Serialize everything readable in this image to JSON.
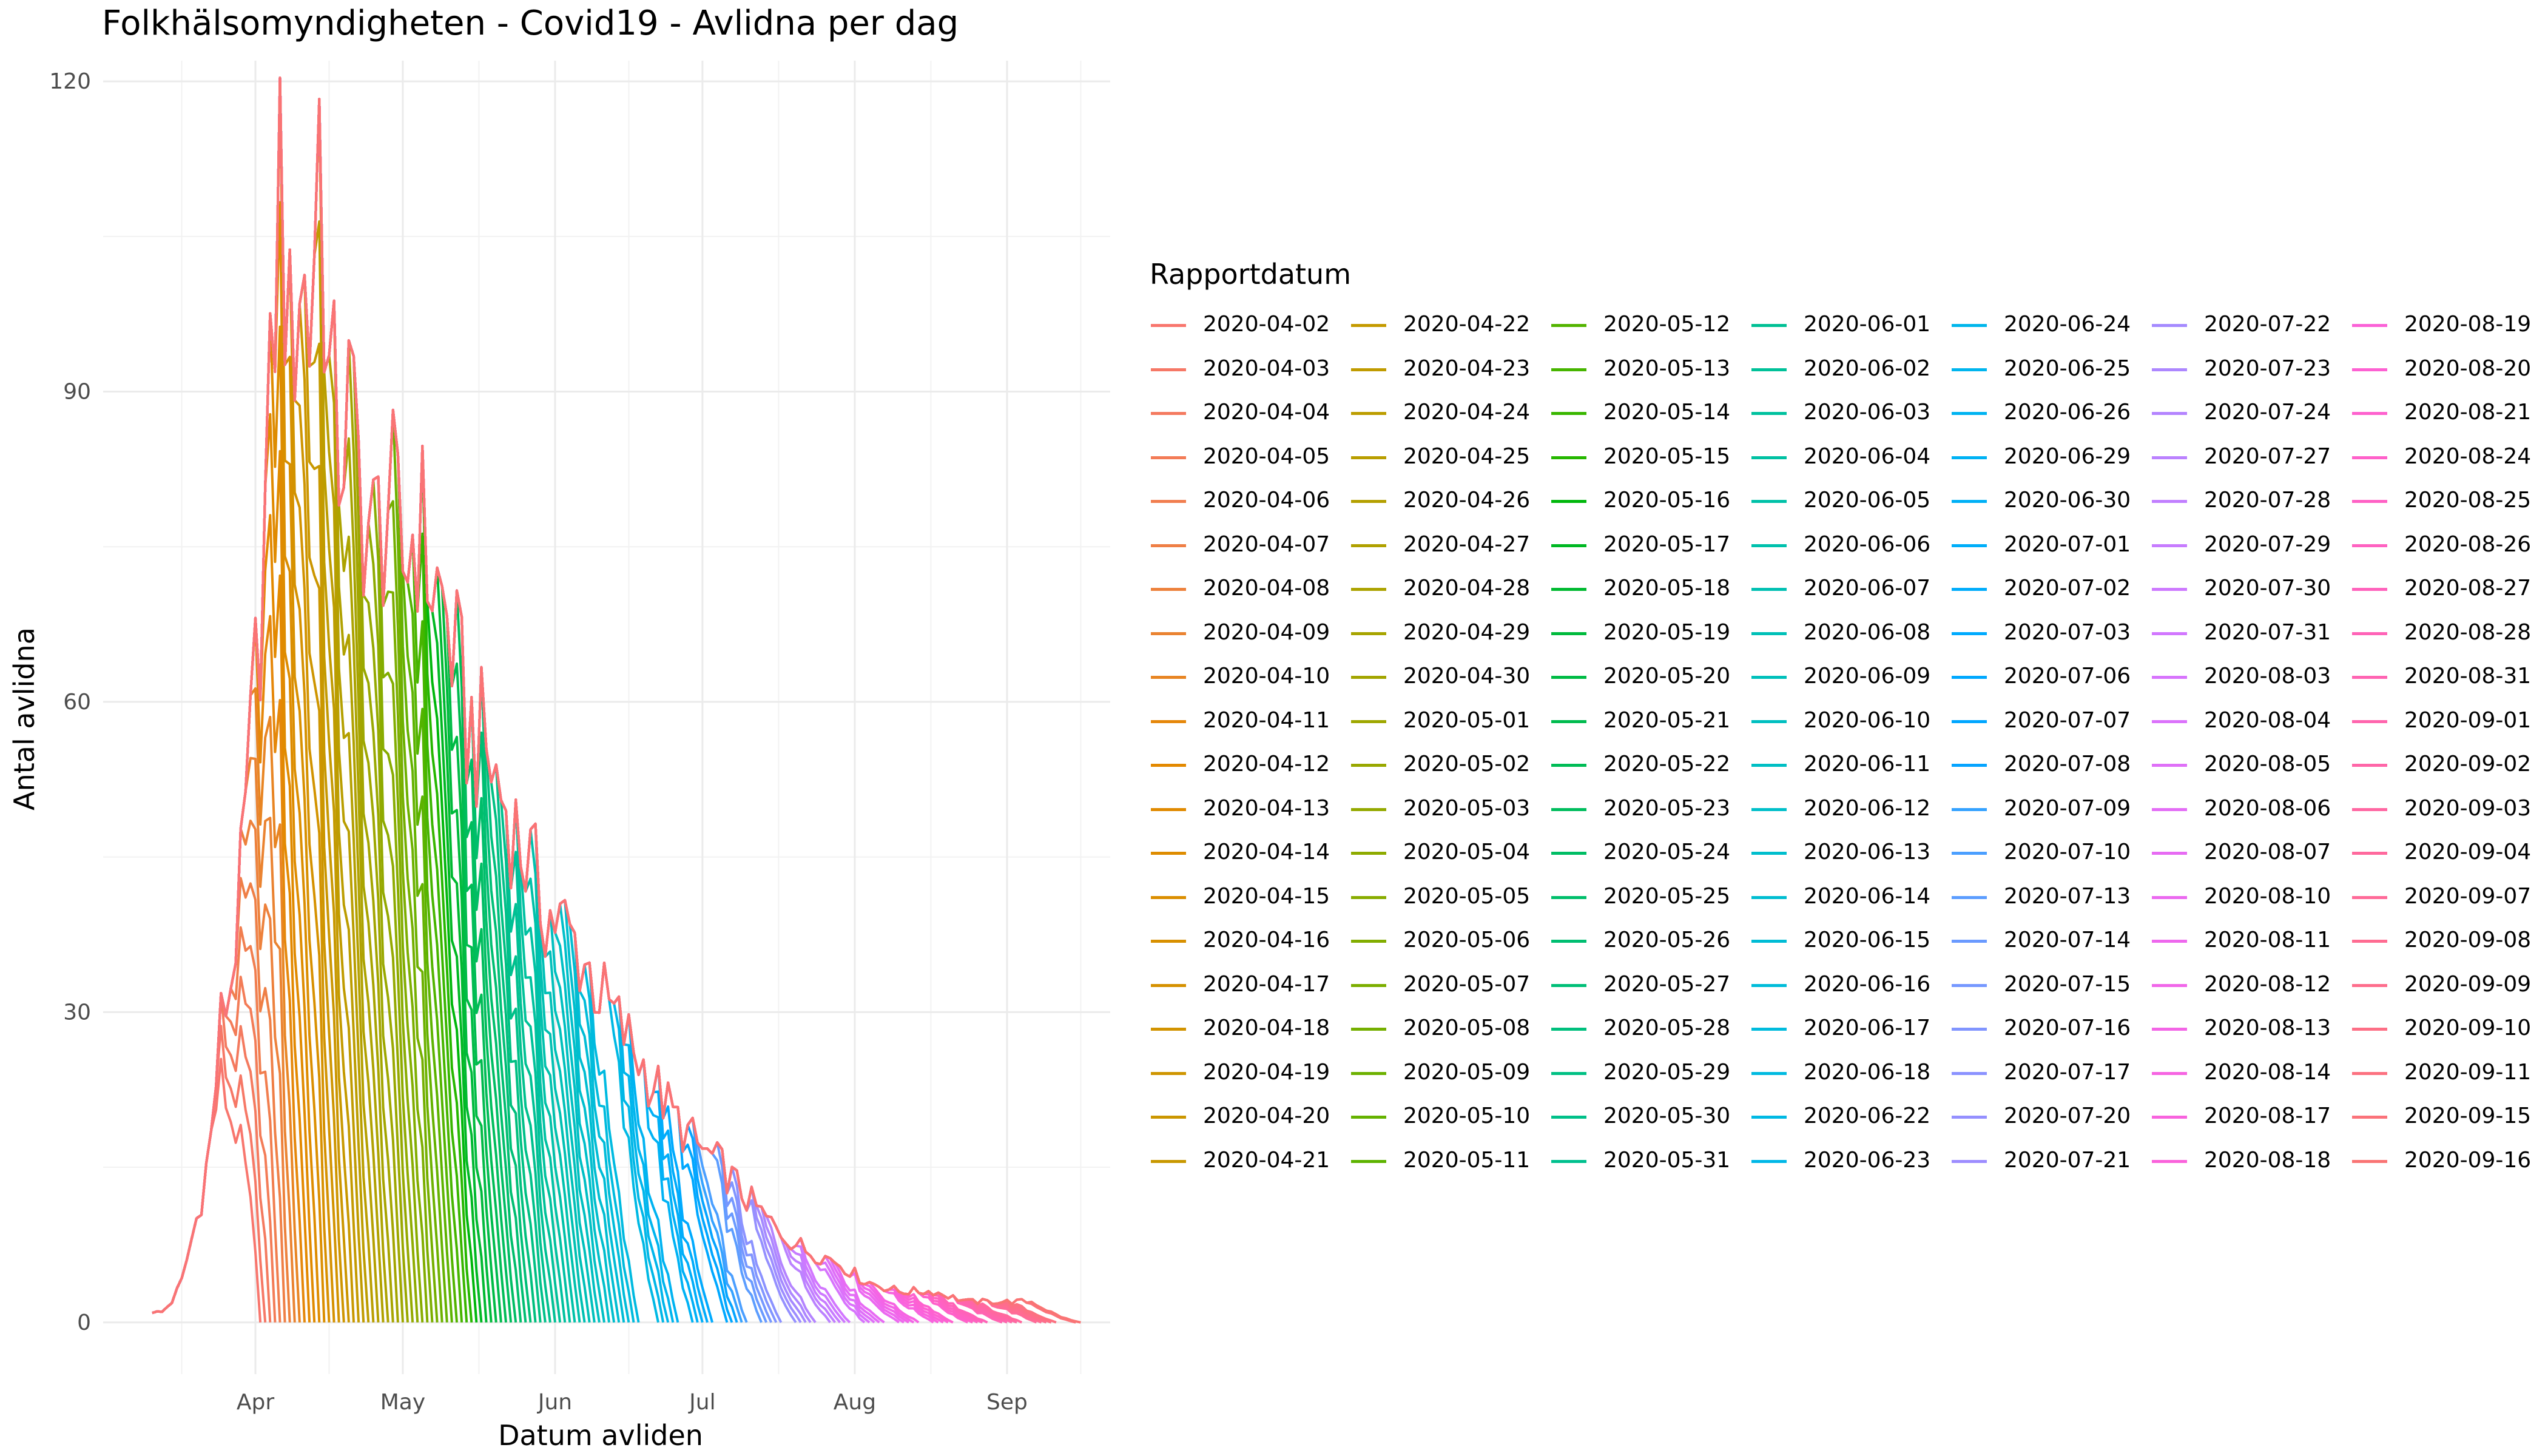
{
  "chart_data": {
    "type": "line",
    "title": "Folkhälsomyndigheten - Covid19 - Avlidna per dag",
    "xlabel": "Datum avliden",
    "ylabel": "Antal avlidna",
    "x_range": [
      "2020-03-01",
      "2020-09-22"
    ],
    "ylim": [
      -5,
      122
    ],
    "x_ticks": [
      {
        "date": "2020-04-01",
        "label": "Apr"
      },
      {
        "date": "2020-05-01",
        "label": "May"
      },
      {
        "date": "2020-06-01",
        "label": "Jun"
      },
      {
        "date": "2020-07-01",
        "label": "Jul"
      },
      {
        "date": "2020-08-01",
        "label": "Aug"
      },
      {
        "date": "2020-09-01",
        "label": "Sep"
      }
    ],
    "y_ticks": [
      0,
      30,
      60,
      90,
      120
    ],
    "grid": true,
    "legend": {
      "title": "Rapportdatum",
      "placement": "right",
      "columns": 7
    },
    "series_description": "One line per report date (Rapportdatum); each line is that report's daily deaths by date of death, sharing the final-report curve below and truncated near its report date.",
    "final_curve": {
      "dates": [
        "2020-03-11",
        "2020-03-13",
        "2020-03-15",
        "2020-03-17",
        "2020-03-19",
        "2020-03-21",
        "2020-03-23",
        "2020-03-25",
        "2020-03-27",
        "2020-03-29",
        "2020-03-31",
        "2020-04-02",
        "2020-04-04",
        "2020-04-06",
        "2020-04-08",
        "2020-04-10",
        "2020-04-12",
        "2020-04-14",
        "2020-04-16",
        "2020-04-18",
        "2020-04-20",
        "2020-04-22",
        "2020-04-25",
        "2020-04-28",
        "2020-05-01",
        "2020-05-04",
        "2020-05-07",
        "2020-05-10",
        "2020-05-14",
        "2020-05-18",
        "2020-05-22",
        "2020-05-26",
        "2020-05-30",
        "2020-06-03",
        "2020-06-07",
        "2020-06-11",
        "2020-06-15",
        "2020-06-20",
        "2020-06-25",
        "2020-06-30",
        "2020-07-05",
        "2020-07-10",
        "2020-07-16",
        "2020-07-22",
        "2020-07-28",
        "2020-08-03",
        "2020-08-10",
        "2020-08-17",
        "2020-08-24",
        "2020-08-31",
        "2020-09-07",
        "2020-09-15"
      ],
      "values": [
        1,
        1,
        2,
        4,
        8,
        12,
        18,
        29,
        33,
        42,
        55,
        69,
        87,
        112,
        93,
        103,
        96,
        116,
        90,
        85,
        88,
        82,
        75,
        80,
        73,
        78,
        72,
        68,
        58,
        55,
        50,
        45,
        40,
        38,
        35,
        31,
        28,
        24,
        20,
        17,
        15,
        12,
        9,
        7,
        6,
        4,
        3,
        3,
        2,
        2,
        2,
        1
      ]
    },
    "report_dates": [
      "2020-04-02",
      "2020-04-03",
      "2020-04-04",
      "2020-04-05",
      "2020-04-06",
      "2020-04-07",
      "2020-04-08",
      "2020-04-09",
      "2020-04-10",
      "2020-04-11",
      "2020-04-12",
      "2020-04-13",
      "2020-04-14",
      "2020-04-15",
      "2020-04-16",
      "2020-04-17",
      "2020-04-18",
      "2020-04-19",
      "2020-04-20",
      "2020-04-21",
      "2020-04-22",
      "2020-04-23",
      "2020-04-24",
      "2020-04-25",
      "2020-04-26",
      "2020-04-27",
      "2020-04-28",
      "2020-04-29",
      "2020-04-30",
      "2020-05-01",
      "2020-05-02",
      "2020-05-03",
      "2020-05-04",
      "2020-05-05",
      "2020-05-06",
      "2020-05-07",
      "2020-05-08",
      "2020-05-09",
      "2020-05-10",
      "2020-05-11",
      "2020-05-12",
      "2020-05-13",
      "2020-05-14",
      "2020-05-15",
      "2020-05-16",
      "2020-05-17",
      "2020-05-18",
      "2020-05-19",
      "2020-05-20",
      "2020-05-21",
      "2020-05-22",
      "2020-05-23",
      "2020-05-24",
      "2020-05-25",
      "2020-05-26",
      "2020-05-27",
      "2020-05-28",
      "2020-05-29",
      "2020-05-30",
      "2020-05-31",
      "2020-06-01",
      "2020-06-02",
      "2020-06-03",
      "2020-06-04",
      "2020-06-05",
      "2020-06-06",
      "2020-06-07",
      "2020-06-08",
      "2020-06-09",
      "2020-06-10",
      "2020-06-11",
      "2020-06-12",
      "2020-06-13",
      "2020-06-14",
      "2020-06-15",
      "2020-06-16",
      "2020-06-17",
      "2020-06-18",
      "2020-06-22",
      "2020-06-23",
      "2020-06-24",
      "2020-06-25",
      "2020-06-26",
      "2020-06-29",
      "2020-06-30",
      "2020-07-01",
      "2020-07-02",
      "2020-07-03",
      "2020-07-06",
      "2020-07-07",
      "2020-07-08",
      "2020-07-09",
      "2020-07-10",
      "2020-07-13",
      "2020-07-14",
      "2020-07-15",
      "2020-07-16",
      "2020-07-17",
      "2020-07-20",
      "2020-07-21",
      "2020-07-22",
      "2020-07-23",
      "2020-07-24",
      "2020-07-27",
      "2020-07-28",
      "2020-07-29",
      "2020-07-30",
      "2020-07-31",
      "2020-08-03",
      "2020-08-04",
      "2020-08-05",
      "2020-08-06",
      "2020-08-07",
      "2020-08-10",
      "2020-08-11",
      "2020-08-12",
      "2020-08-13",
      "2020-08-14",
      "2020-08-17",
      "2020-08-18",
      "2020-08-19",
      "2020-08-20",
      "2020-08-21",
      "2020-08-24",
      "2020-08-25",
      "2020-08-26",
      "2020-08-27",
      "2020-08-28",
      "2020-08-31",
      "2020-09-01",
      "2020-09-02",
      "2020-09-03",
      "2020-09-04",
      "2020-09-07",
      "2020-09-08",
      "2020-09-09",
      "2020-09-10",
      "2020-09-11",
      "2020-09-15",
      "2020-09-16"
    ]
  }
}
